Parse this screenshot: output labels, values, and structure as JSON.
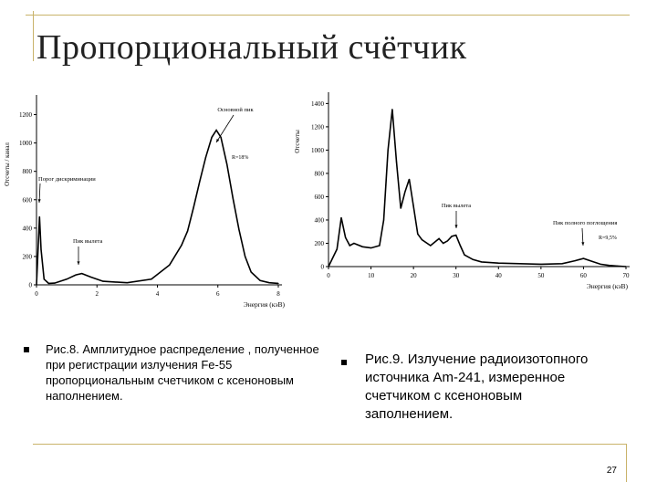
{
  "slide": {
    "title": "Пропорциональный счётчик",
    "page_number": "27"
  },
  "captions": {
    "left": "Рис.8. Амплитудное распределение , полученное при регистрации излучения Fe-55 пропорциональным счетчиком с ксеноновым наполнением.",
    "right": "Рис.9. Излучение радиоизотопного источника Am-241, измеренное счетчиком с ксеноновым заполнением."
  },
  "chart_data": [
    {
      "type": "line",
      "ylabel": "Отсчеты / канал",
      "xlabel": "Энергия (кэВ)",
      "xlim": [
        0,
        8
      ],
      "ylim": [
        0,
        1300
      ],
      "xticks": [
        "0",
        "2",
        "4",
        "6",
        "8"
      ],
      "yticks": [
        "0",
        "200",
        "400",
        "600",
        "800",
        "1000",
        "1200"
      ],
      "annotations": [
        "Основной пик",
        "R=18%",
        "Порог дискриминации",
        "Пик вылета"
      ],
      "series": [
        {
          "x": [
            0,
            0.1,
            0.15,
            0.25,
            0.4,
            0.6,
            1.0,
            1.3,
            1.5,
            1.8,
            2.2,
            3.0,
            3.8,
            4.4,
            4.8,
            5.0,
            5.2,
            5.4,
            5.6,
            5.8,
            5.95,
            6.1,
            6.3,
            6.5,
            6.7,
            6.9,
            7.1,
            7.4,
            7.7,
            8.0
          ],
          "y": [
            0,
            480,
            250,
            40,
            10,
            12,
            40,
            70,
            80,
            55,
            25,
            15,
            40,
            140,
            280,
            380,
            550,
            730,
            900,
            1040,
            1090,
            1040,
            850,
            610,
            390,
            200,
            90,
            30,
            15,
            10
          ]
        }
      ]
    },
    {
      "type": "line",
      "ylabel": "Отсчеты",
      "xlabel": "Энергия (кэВ)",
      "xlim": [
        0,
        70
      ],
      "ylim": [
        0,
        1450
      ],
      "xticks": [
        "0",
        "10",
        "20",
        "30",
        "40",
        "50",
        "60",
        "70"
      ],
      "yticks": [
        "0",
        "200",
        "400",
        "600",
        "800",
        "1000",
        "1200",
        "1400"
      ],
      "annotations": [
        "Пик вылета",
        "Пик полного поглощения",
        "R=9,5%"
      ],
      "series": [
        {
          "x": [
            0,
            2,
            3,
            4,
            5,
            6,
            8,
            10,
            12,
            13,
            14,
            15,
            16,
            17,
            18,
            19,
            20,
            21,
            22,
            24,
            26,
            27,
            28,
            29,
            30,
            31,
            32,
            34,
            36,
            40,
            45,
            50,
            55,
            58,
            60,
            62,
            64,
            66,
            68,
            70
          ],
          "y": [
            0,
            150,
            420,
            250,
            180,
            200,
            170,
            160,
            180,
            400,
            1000,
            1350,
            900,
            500,
            640,
            750,
            520,
            280,
            230,
            180,
            240,
            200,
            220,
            260,
            270,
            180,
            100,
            60,
            40,
            30,
            25,
            20,
            25,
            50,
            70,
            45,
            20,
            10,
            5,
            0
          ]
        }
      ]
    }
  ]
}
